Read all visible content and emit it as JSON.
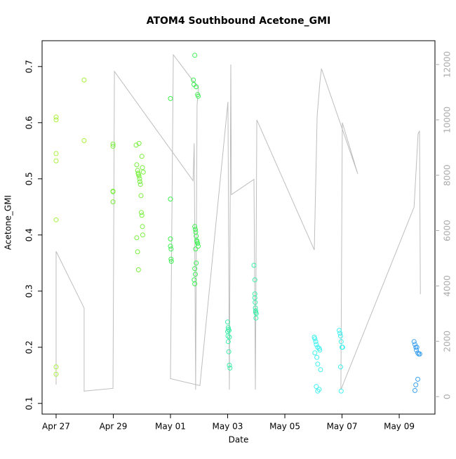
{
  "chart_data": {
    "type": "scatter",
    "title": "ATOM4 Southbound Acetone_GMI",
    "x_label": "Date",
    "y_label": "Acetone_GMI",
    "xlim": [
      -0.49,
      13.25
    ],
    "ylim": [
      0.081,
      0.746
    ],
    "y2lim": [
      -630,
      12860
    ],
    "xticks": [
      {
        "value": 0,
        "label": "Apr 27"
      },
      {
        "value": 2,
        "label": "Apr 29"
      },
      {
        "value": 4,
        "label": "May 01"
      },
      {
        "value": 6,
        "label": "May 03"
      },
      {
        "value": 8,
        "label": "May 05"
      },
      {
        "value": 10,
        "label": "May 07"
      },
      {
        "value": 12,
        "label": "May 09"
      }
    ],
    "yticks": [
      0.1,
      0.2,
      0.3,
      0.4,
      0.5,
      0.6,
      0.7
    ],
    "y2ticks": [
      0,
      2000,
      4000,
      6000,
      8000,
      10000,
      12000
    ],
    "series": [
      {
        "color": "#a8f03c",
        "x": [
          0,
          0,
          0,
          0,
          0,
          0,
          0,
          0.98,
          0.98
        ],
        "values": [
          0.61,
          0.605,
          0.545,
          0.532,
          0.427,
          0.165,
          0.152,
          0.676,
          0.568
        ]
      },
      {
        "color": "#78f03c",
        "x": [
          1.99,
          1.99,
          1.99,
          1.99,
          1.99,
          2.8,
          2.82,
          2.85,
          2.87,
          2.88,
          2.9,
          2.92,
          2.93,
          2.95,
          2.97,
          2.98,
          3.0,
          3.02,
          3.03,
          2.82,
          2.85,
          2.88,
          2.9,
          3.0,
          3.02,
          3.05
        ],
        "values": [
          0.562,
          0.558,
          0.478,
          0.477,
          0.459,
          0.56,
          0.525,
          0.515,
          0.51,
          0.508,
          0.505,
          0.5,
          0.495,
          0.49,
          0.47,
          0.44,
          0.435,
          0.415,
          0.4,
          0.395,
          0.37,
          0.338,
          0.563,
          0.54,
          0.52,
          0.512
        ]
      },
      {
        "color": "#3cf050",
        "x": [
          4.0,
          4.0,
          4.0,
          4.0,
          4.02,
          4.02,
          4.03,
          4.85,
          4.8,
          4.82,
          4.9,
          4.95,
          4.97,
          4.85,
          4.87,
          4.88,
          4.9,
          4.92,
          4.93,
          4.95,
          4.97,
          4.88,
          4.9,
          4.85,
          4.87,
          4.83,
          4.85
        ],
        "values": [
          0.643,
          0.464,
          0.393,
          0.38,
          0.375,
          0.357,
          0.353,
          0.72,
          0.676,
          0.668,
          0.664,
          0.65,
          0.647,
          0.415,
          0.41,
          0.405,
          0.398,
          0.39,
          0.388,
          0.385,
          0.38,
          0.375,
          0.35,
          0.34,
          0.33,
          0.32,
          0.313
        ]
      },
      {
        "color": "#3cf0a8",
        "x": [
          6.0,
          6.02,
          6.03,
          6.05,
          6.0,
          6.01,
          6.06,
          6.02,
          6.04,
          6.06,
          6.08,
          6.92,
          6.95,
          6.95,
          6.95,
          6.96,
          6.97,
          6.98,
          6.98,
          7.0,
          6.99
        ],
        "values": [
          0.245,
          0.235,
          0.232,
          0.23,
          0.228,
          0.22,
          0.218,
          0.21,
          0.192,
          0.168,
          0.163,
          0.346,
          0.32,
          0.295,
          0.288,
          0.28,
          0.27,
          0.265,
          0.262,
          0.26,
          0.252
        ]
      },
      {
        "color": "#3cf0f0",
        "x": [
          9.03,
          9.05,
          9.08,
          9.1,
          9.15,
          9.2,
          9.22,
          9.05,
          9.12,
          9.15,
          9.25,
          9.1,
          9.2,
          9.15,
          9.9,
          9.93,
          9.95,
          9.97,
          10.0,
          10.02,
          9.95,
          9.97
        ],
        "values": [
          0.218,
          0.215,
          0.21,
          0.205,
          0.2,
          0.198,
          0.195,
          0.19,
          0.182,
          0.17,
          0.16,
          0.13,
          0.125,
          0.122,
          0.23,
          0.225,
          0.22,
          0.21,
          0.2,
          0.2,
          0.165,
          0.122
        ]
      },
      {
        "color": "#3ca0f0",
        "x": [
          12.52,
          12.55,
          12.58,
          12.62,
          12.6,
          12.65,
          12.68,
          12.72,
          12.65,
          12.58,
          12.55
        ],
        "values": [
          0.21,
          0.205,
          0.2,
          0.2,
          0.195,
          0.19,
          0.188,
          0.188,
          0.143,
          0.133,
          0.123
        ]
      },
      {
        "color": "#bebebe",
        "axis": "y2",
        "x": [
          0,
          0,
          0.98,
          0.98,
          1.99,
          2.04,
          4.79,
          4.83,
          4.88,
          4.93,
          4.98,
          4.1,
          4.0,
          5.03,
          6.01,
          6.06,
          6.11,
          6.13,
          6.92,
          6.97,
          7.02,
          9.03,
          9.13,
          9.23,
          9.28,
          10.55,
          10.01,
          9.96,
          12.52,
          12.66,
          12.71,
          12.74
        ],
        "values": [
          430,
          5250,
          3200,
          200,
          300,
          11750,
          7800,
          9150,
          250,
          10550,
          11150,
          12350,
          650,
          400,
          10650,
          250,
          12000,
          7300,
          7850,
          250,
          10000,
          5300,
          10150,
          11400,
          11850,
          8050,
          9900,
          250,
          6850,
          9500,
          9600,
          3700
        ]
      }
    ]
  }
}
